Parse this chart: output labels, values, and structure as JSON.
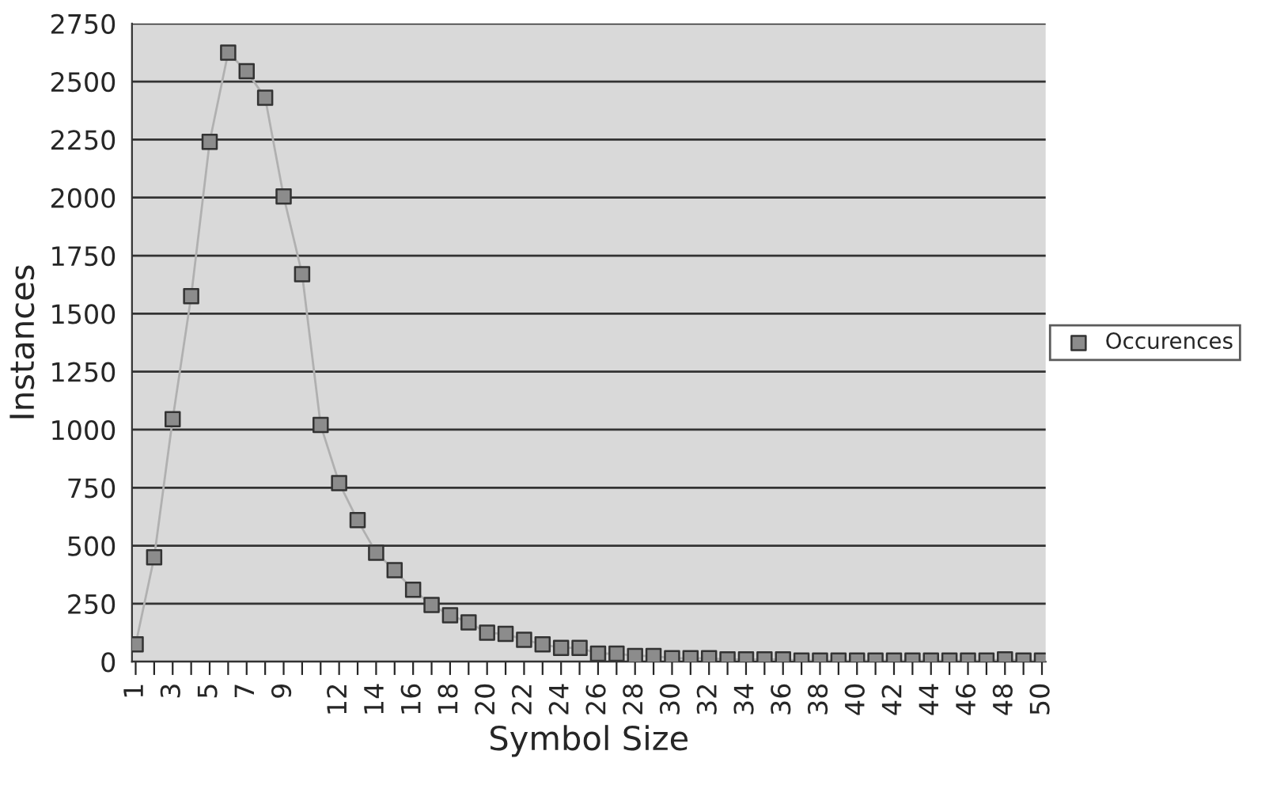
{
  "chart_data": {
    "type": "line",
    "xlabel": "Symbol Size",
    "ylabel": "Instances",
    "categories": [
      "1",
      null,
      "3",
      null,
      "5",
      null,
      "7",
      null,
      "9",
      null,
      null,
      "12",
      null,
      "14",
      null,
      "16",
      null,
      "18",
      null,
      "20",
      null,
      "22",
      null,
      "24",
      null,
      "26",
      null,
      "28",
      null,
      "30",
      null,
      "32",
      null,
      "34",
      null,
      "36",
      null,
      "38",
      null,
      "40",
      null,
      "42",
      null,
      "44",
      null,
      "46",
      null,
      "48",
      null,
      "50"
    ],
    "series": [
      {
        "name": "Occurences",
        "color": "#8c8c8c",
        "values": [
          75,
          450,
          1045,
          1575,
          2240,
          2625,
          2545,
          2430,
          2005,
          1670,
          1020,
          770,
          610,
          470,
          395,
          310,
          245,
          200,
          170,
          125,
          120,
          95,
          75,
          60,
          60,
          35,
          35,
          25,
          25,
          15,
          15,
          15,
          10,
          10,
          10,
          10,
          5,
          5,
          5,
          5,
          5,
          5,
          5,
          5,
          5,
          5,
          5,
          10,
          5,
          5
        ]
      }
    ],
    "ylim": [
      0,
      2750
    ],
    "yticks": [
      0,
      250,
      500,
      750,
      1000,
      1250,
      1500,
      1750,
      2000,
      2250,
      2500,
      2750
    ],
    "grid": "y",
    "legend": "right",
    "marker": "square",
    "line_style": "solid"
  }
}
